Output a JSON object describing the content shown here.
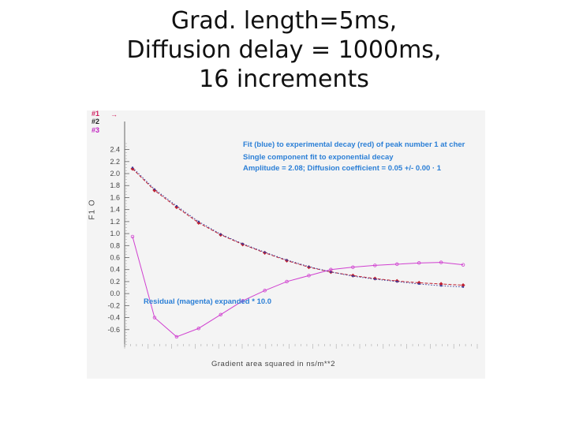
{
  "slide": {
    "title_lines": [
      "Grad. length=5ms,",
      "Diffusion delay = 1000ms,",
      "16 increments"
    ]
  },
  "plot_info": {
    "line1": "Fit (blue) to experimental decay (red) of peak number 1 at cher",
    "line2": "Single component fit to  exponential decay",
    "line3": "Amplitude =    2.08;  Diffusion coefficient =  0.05 +/-  0.00 · 1",
    "residual": "Residual (magenta) expanded  *   10.0"
  },
  "legend": {
    "tag1": "#1",
    "tag2": "#2",
    "tag3": "#3",
    "arrow": "→"
  },
  "colors": {
    "background": "#f4f4f4",
    "fit": "#3a3a9a",
    "experimental": "#c02030",
    "residual": "#d040d0",
    "info_text": "#2b7fd6",
    "axis": "#666666"
  },
  "chart_data": {
    "type": "line",
    "title": "",
    "xlabel": "Gradient area squared in ns/m**2",
    "ylabel": "F1 O",
    "ylim": [
      -0.8,
      2.5
    ],
    "xlim": [
      0,
      16
    ],
    "y_tick_labels": [
      "2.4",
      "2.2",
      "2.0",
      "1.8",
      "1.6",
      "1.4",
      "1.2",
      "1.0",
      "0.8",
      "0.6",
      "0.4",
      "0.2",
      "0.0",
      "-0.2",
      "-0.4",
      "-0.6"
    ],
    "y_ticks": [
      2.4,
      2.2,
      2.0,
      1.8,
      1.6,
      1.4,
      1.2,
      1.0,
      0.8,
      0.6,
      0.4,
      0.2,
      0.0,
      -0.2,
      -0.4,
      -0.6
    ],
    "x": [
      0,
      1,
      2,
      3,
      4,
      5,
      6,
      7,
      8,
      9,
      10,
      11,
      12,
      13,
      14,
      15
    ],
    "series": [
      {
        "values": [
          2.08,
          1.72,
          1.44,
          1.18,
          0.98,
          0.82,
          0.68,
          0.55,
          0.44,
          0.36,
          0.3,
          0.25,
          0.21,
          0.18,
          0.16,
          0.14
        ]
      },
      {
        "values": [
          2.1,
          1.74,
          1.46,
          1.2,
          0.99,
          0.83,
          0.69,
          0.56,
          0.45,
          0.36,
          0.29,
          0.24,
          0.2,
          0.16,
          0.13,
          0.11
        ]
      },
      {
        "values": [
          0.95,
          -0.4,
          -0.72,
          -0.58,
          -0.35,
          -0.12,
          0.05,
          0.2,
          0.3,
          0.4,
          0.44,
          0.47,
          0.49,
          0.51,
          0.52,
          0.48
        ]
      }
    ],
    "grid": false,
    "legend": "top-left"
  }
}
